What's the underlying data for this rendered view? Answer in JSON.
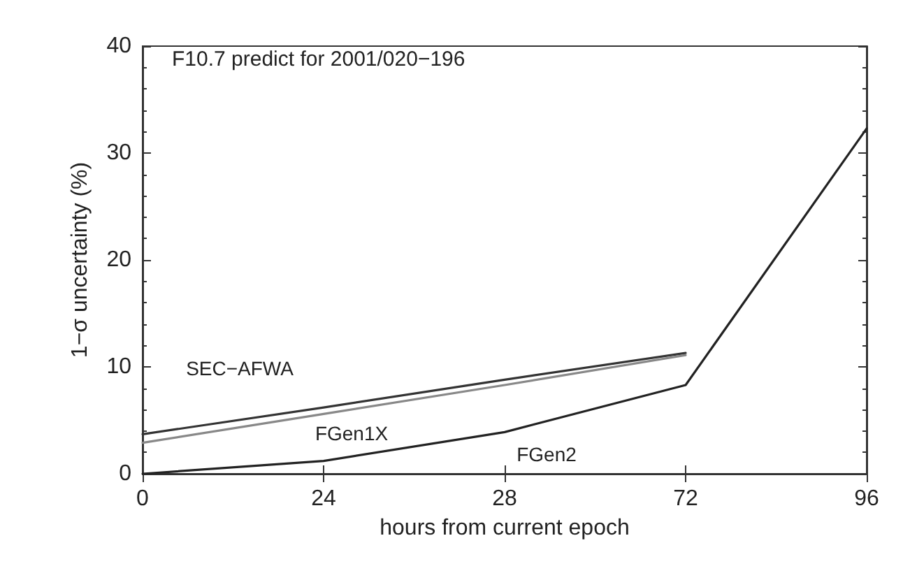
{
  "chart_data": {
    "type": "line",
    "title": "F10.7 predict for 2001/020−196",
    "xlabel": "hours from current epoch",
    "ylabel": "1−σ uncertainty (%)",
    "categories": [
      "0",
      "24",
      "28",
      "72",
      "96"
    ],
    "ylim": [
      0,
      40
    ],
    "yticks": [
      0,
      10,
      20,
      30,
      40
    ],
    "grid": false,
    "legend": false,
    "marker": "none",
    "line_style": "solid",
    "series": [
      {
        "name": "SEC−AFWA",
        "color": "#333333",
        "values": [
          3.7,
          6.2,
          8.8,
          11.3,
          null
        ]
      },
      {
        "name": "FGen1X",
        "color": "#888888",
        "values": [
          2.9,
          5.6,
          8.3,
          11.1,
          null
        ]
      },
      {
        "name": "FGen2",
        "color": "#222222",
        "values": [
          0,
          1.2,
          3.9,
          8.3,
          32.3
        ]
      }
    ]
  }
}
